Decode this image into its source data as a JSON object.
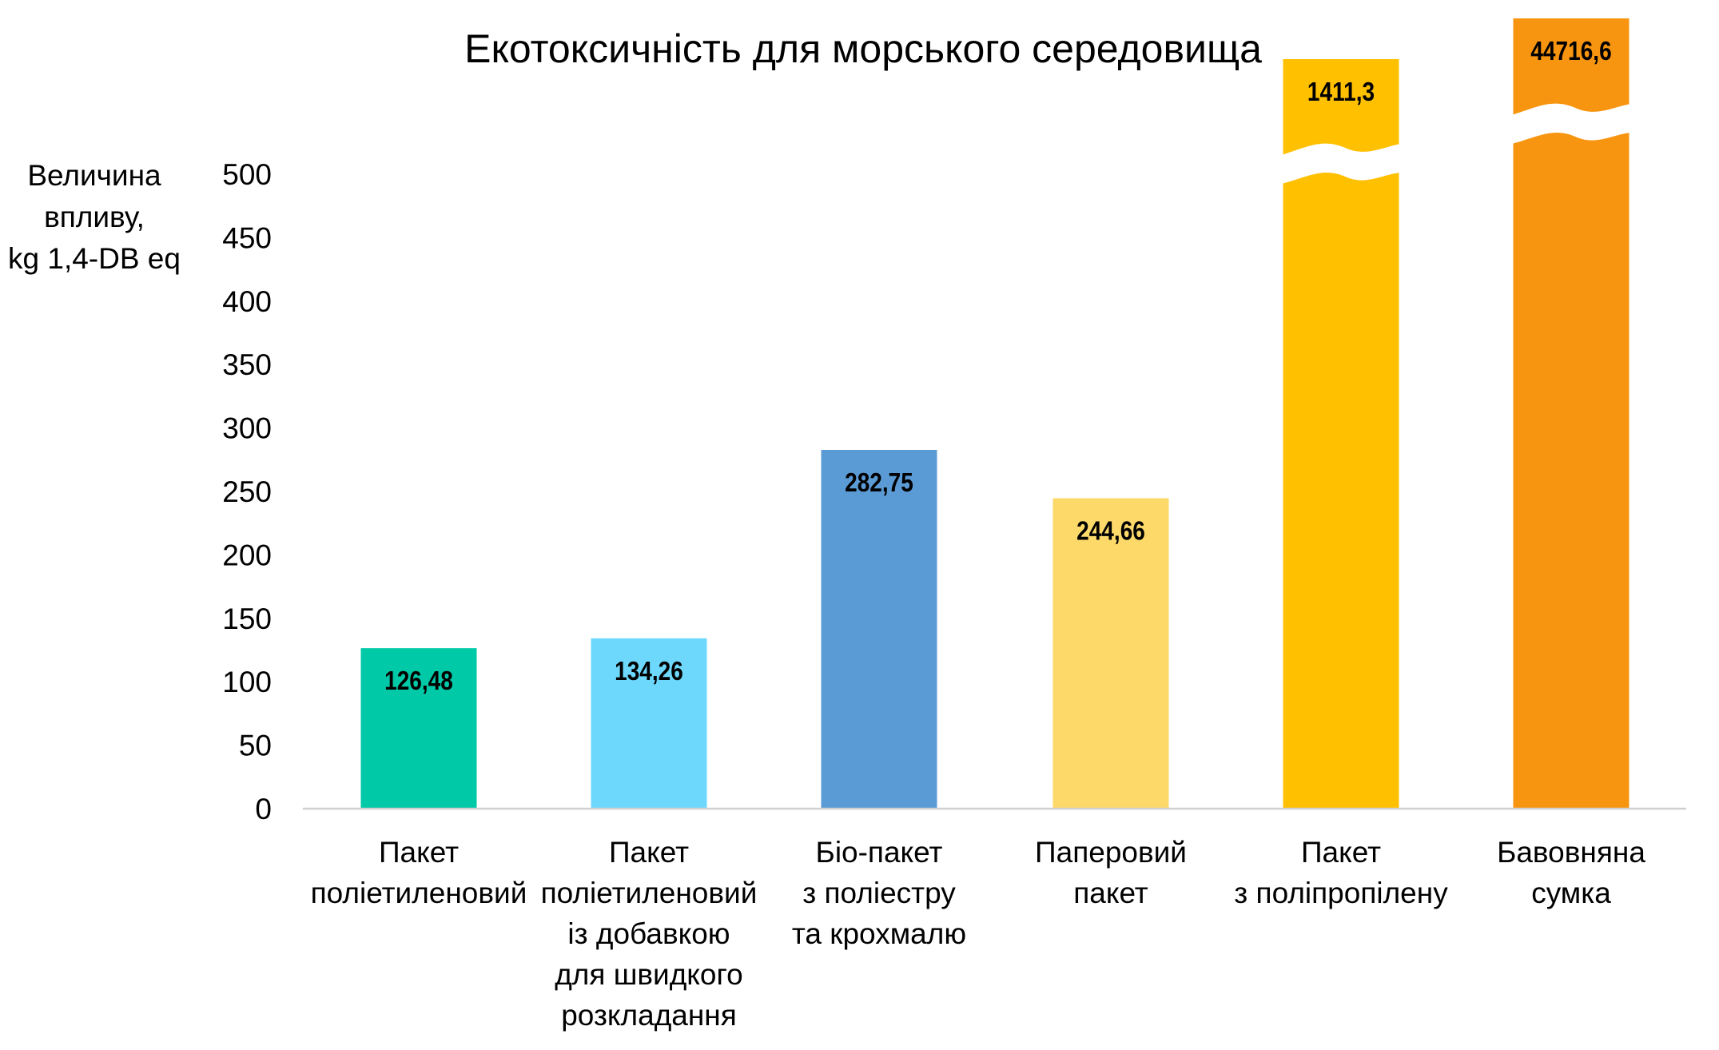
{
  "chart_data": {
    "type": "bar",
    "title": "Екотоксичність для морського середовища",
    "ylabel": [
      "Величина",
      "впливу,",
      "kg 1,4-DB eq"
    ],
    "xlabel": "",
    "ylim": [
      0,
      500
    ],
    "yticks": [
      0,
      50,
      100,
      150,
      200,
      250,
      300,
      350,
      400,
      450,
      500
    ],
    "grid": false,
    "categories": [
      [
        "Пакет",
        "поліетиленовий"
      ],
      [
        "Пакет",
        "поліетиленовий",
        "із добавкою",
        "для швидкого",
        "розкладання"
      ],
      [
        "Біо-пакет",
        "з поліестру",
        "та крохмалю"
      ],
      [
        "Паперовий",
        "пакет"
      ],
      [
        "Пакет",
        "з поліпропілену"
      ],
      [
        "Бавовняна",
        "сумка"
      ]
    ],
    "values": [
      126.48,
      134.26,
      282.75,
      244.66,
      1411.3,
      44716.6
    ],
    "value_labels": [
      "126,48",
      "134,26",
      "282,75",
      "244,66",
      "1411,3",
      "44716,6"
    ],
    "axis_break": [
      false,
      false,
      false,
      false,
      true,
      true
    ],
    "colors": [
      "#00C9A7",
      "#6DD8FC",
      "#5B9BD5",
      "#FDD96A",
      "#FFC000",
      "#F79410"
    ]
  }
}
